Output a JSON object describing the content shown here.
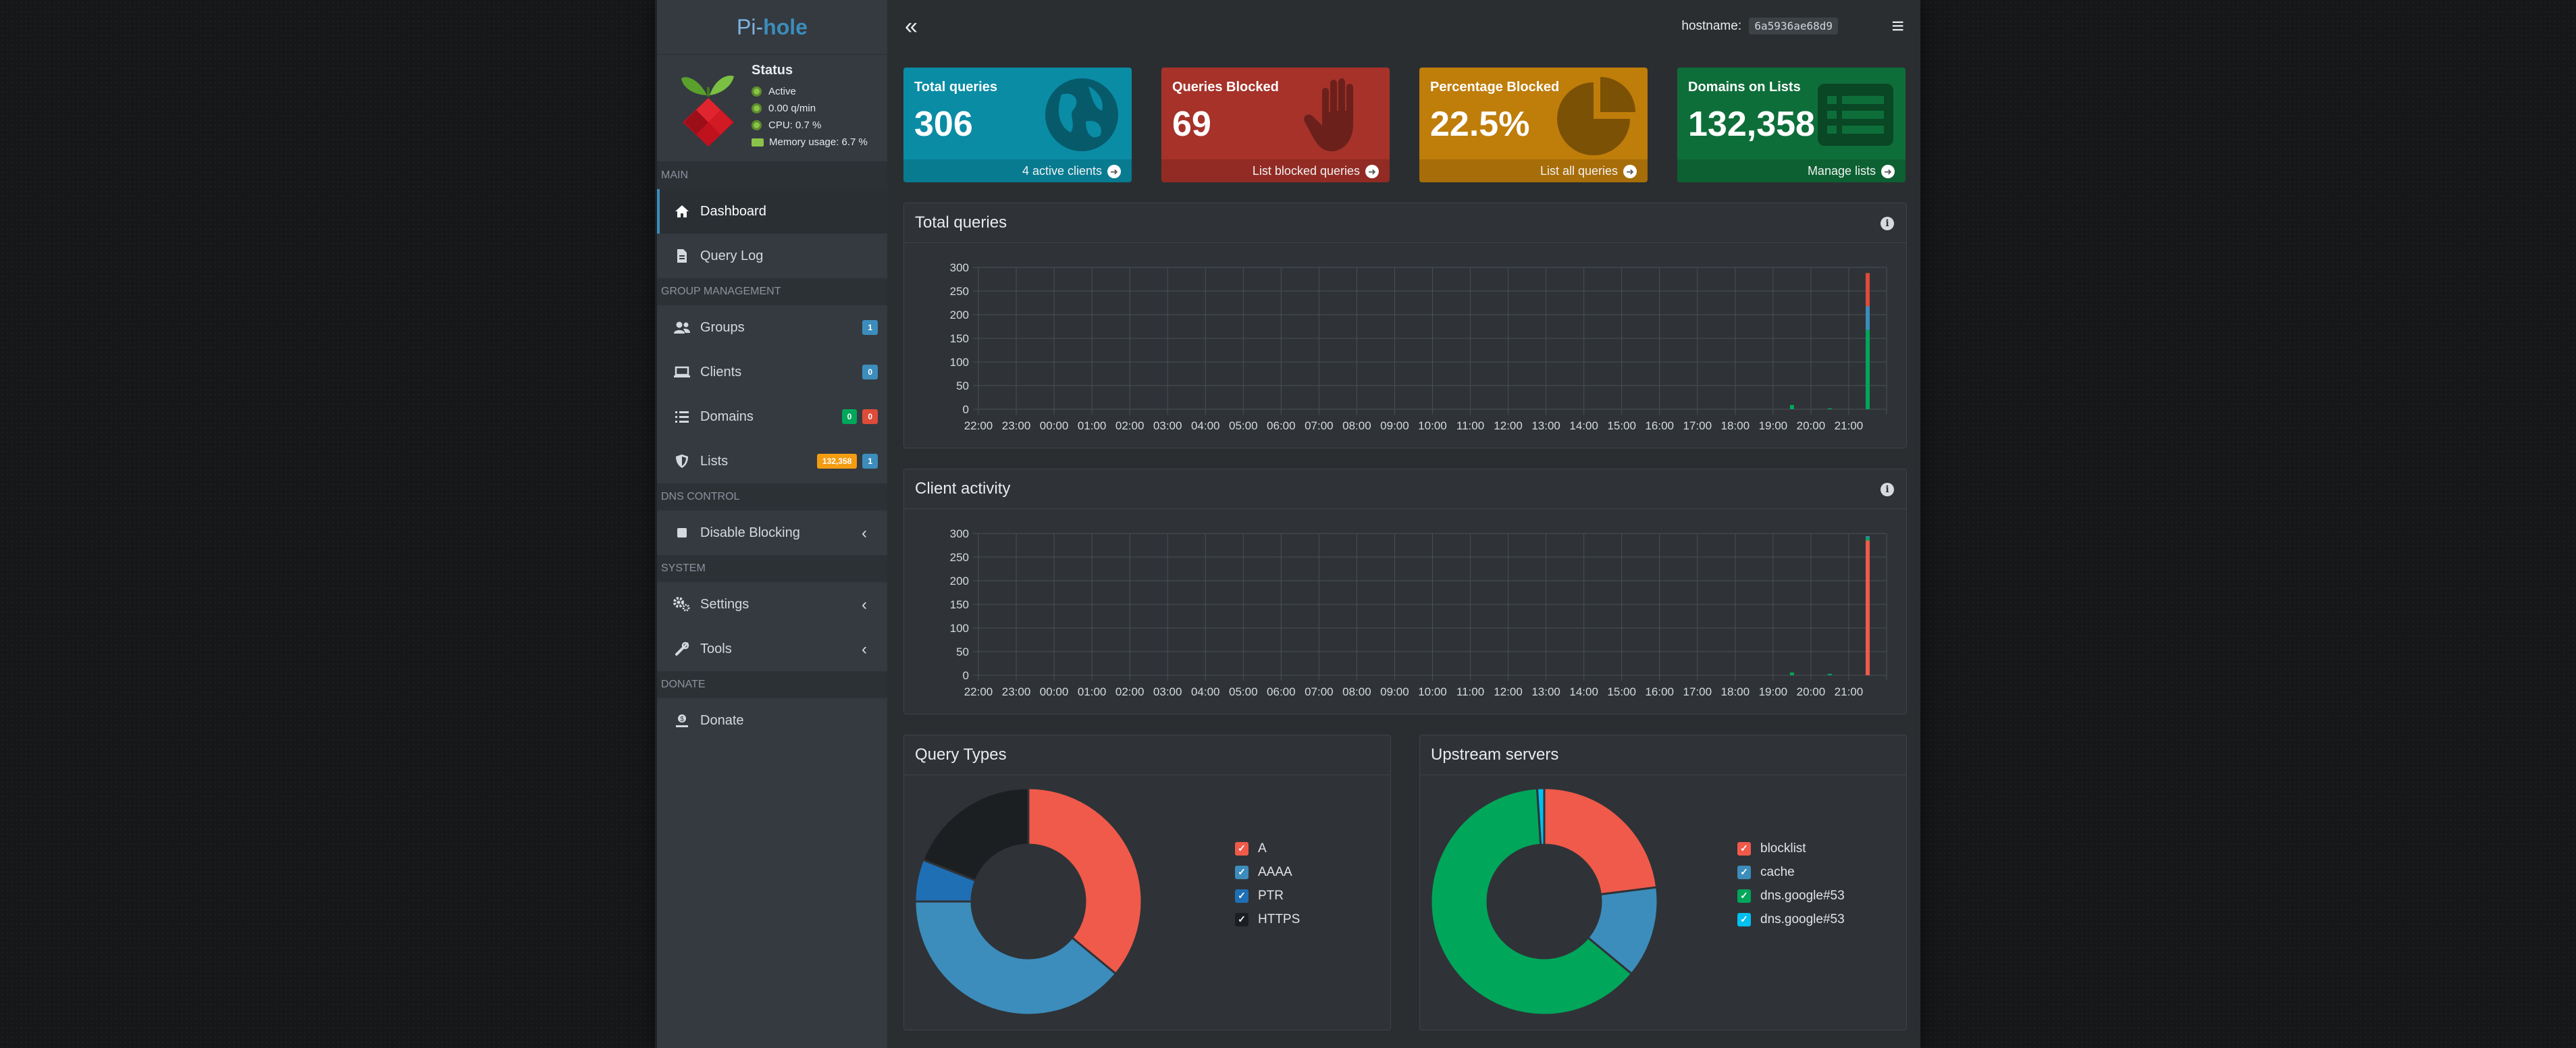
{
  "brand": {
    "prefix": "Pi-",
    "suffix": "hole"
  },
  "status": {
    "title": "Status",
    "lines": [
      {
        "text": "Active",
        "icon": "circle-icon"
      },
      {
        "text": "0.00 q/min",
        "icon": "circle-icon"
      },
      {
        "text": "CPU: 0.7 %",
        "icon": "circle-icon"
      },
      {
        "text": "Memory usage: 6.7 %",
        "icon": "memory-icon"
      }
    ]
  },
  "sidebar": {
    "sections": {
      "main": "MAIN",
      "group": "GROUP MANAGEMENT",
      "dns": "DNS CONTROL",
      "system": "SYSTEM",
      "donate": "DONATE"
    },
    "items": {
      "dashboard": "Dashboard",
      "query_log": "Query Log",
      "groups": "Groups",
      "clients": "Clients",
      "domains": "Domains",
      "lists": "Lists",
      "disable_blocking": "Disable Blocking",
      "settings": "Settings",
      "tools": "Tools",
      "donate": "Donate"
    },
    "badges": {
      "groups": "1",
      "clients": "0",
      "domains_allowed": "0",
      "domains_denied": "0",
      "lists_domains": "132,358",
      "lists_count": "1"
    }
  },
  "topbar": {
    "collapse_glyph": "«",
    "hostname_label": "hostname:",
    "hostname_value": "6a5936ae68d9",
    "menu_glyph": "≡"
  },
  "cards": [
    {
      "title": "Total queries",
      "value": "306",
      "footer": "4 active clients",
      "color": "#0a8ca5",
      "icon": "globe-icon"
    },
    {
      "title": "Queries Blocked",
      "value": "69",
      "footer": "List blocked queries",
      "color": "#a6322a",
      "icon": "hand-icon"
    },
    {
      "title": "Percentage Blocked",
      "value": "22.5%",
      "footer": "List all queries",
      "color": "#bf7d0a",
      "icon": "pie-chart-icon"
    },
    {
      "title": "Domains on Lists",
      "value": "132,358",
      "footer": "Manage lists",
      "color": "#0e6e3a",
      "icon": "list-icon"
    }
  ],
  "boxes": {
    "total_queries": "Total queries",
    "client_activity": "Client activity",
    "query_types": "Query Types",
    "upstream_servers": "Upstream servers"
  },
  "chart_data": [
    {
      "type": "bar",
      "title": "Total queries",
      "categories": [
        "22:00",
        "23:00",
        "00:00",
        "01:00",
        "02:00",
        "03:00",
        "04:00",
        "05:00",
        "06:00",
        "07:00",
        "08:00",
        "09:00",
        "10:00",
        "11:00",
        "12:00",
        "13:00",
        "14:00",
        "15:00",
        "16:00",
        "17:00",
        "18:00",
        "19:00",
        "20:00",
        "21:00"
      ],
      "yticks": [
        0,
        50,
        100,
        150,
        200,
        250,
        300
      ],
      "ylim": [
        0,
        300
      ],
      "series": [
        {
          "color": "#00a65a",
          "values": [
            0,
            0,
            0,
            0,
            0,
            0,
            0,
            0,
            0,
            0,
            0,
            0,
            0,
            0,
            0,
            0,
            0,
            0,
            0,
            0,
            0,
            9,
            2,
            168
          ]
        },
        {
          "color": "#3c8dbc",
          "values": [
            0,
            0,
            0,
            0,
            0,
            0,
            0,
            0,
            0,
            0,
            0,
            0,
            0,
            0,
            0,
            0,
            0,
            0,
            0,
            0,
            0,
            0,
            0,
            50
          ]
        },
        {
          "color": "#dd4b39",
          "values": [
            0,
            0,
            0,
            0,
            0,
            0,
            0,
            0,
            0,
            0,
            0,
            0,
            0,
            0,
            0,
            0,
            0,
            0,
            0,
            0,
            0,
            0,
            0,
            70
          ]
        }
      ]
    },
    {
      "type": "bar",
      "title": "Client activity",
      "categories": [
        "22:00",
        "23:00",
        "00:00",
        "01:00",
        "02:00",
        "03:00",
        "04:00",
        "05:00",
        "06:00",
        "07:00",
        "08:00",
        "09:00",
        "10:00",
        "11:00",
        "12:00",
        "13:00",
        "14:00",
        "15:00",
        "16:00",
        "17:00",
        "18:00",
        "19:00",
        "20:00",
        "21:00"
      ],
      "yticks": [
        0,
        50,
        100,
        150,
        200,
        250,
        300
      ],
      "ylim": [
        0,
        300
      ],
      "series": [
        {
          "color": "#f05a4a",
          "values": [
            0,
            0,
            0,
            0,
            0,
            0,
            0,
            0,
            0,
            0,
            0,
            0,
            0,
            0,
            0,
            0,
            0,
            0,
            0,
            0,
            0,
            0,
            0,
            285
          ]
        },
        {
          "color": "#00a65a",
          "values": [
            0,
            0,
            0,
            0,
            0,
            0,
            0,
            0,
            0,
            0,
            0,
            0,
            0,
            0,
            0,
            0,
            0,
            0,
            0,
            0,
            0,
            6,
            3,
            6
          ]
        },
        {
          "color": "#3c8dbc",
          "values": [
            0,
            0,
            0,
            0,
            0,
            0,
            0,
            0,
            0,
            0,
            0,
            0,
            0,
            0,
            0,
            0,
            0,
            0,
            0,
            0,
            0,
            0,
            0,
            3
          ]
        }
      ]
    },
    {
      "type": "pie",
      "title": "Query Types",
      "labels": [
        "A",
        "AAAA",
        "PTR",
        "HTTPS"
      ],
      "values": [
        36,
        39,
        6,
        19
      ],
      "colors": [
        "#f05a4a",
        "#3c8dbc",
        "#1f6fb5",
        "#1c1f22"
      ]
    },
    {
      "type": "pie",
      "title": "Upstream servers",
      "labels": [
        "blocklist",
        "cache",
        "dns.google#53",
        "dns.google#53"
      ],
      "values": [
        23,
        13,
        63,
        1
      ],
      "colors": [
        "#f05a4a",
        "#3c8dbc",
        "#00a65a",
        "#00c0ef"
      ]
    }
  ]
}
